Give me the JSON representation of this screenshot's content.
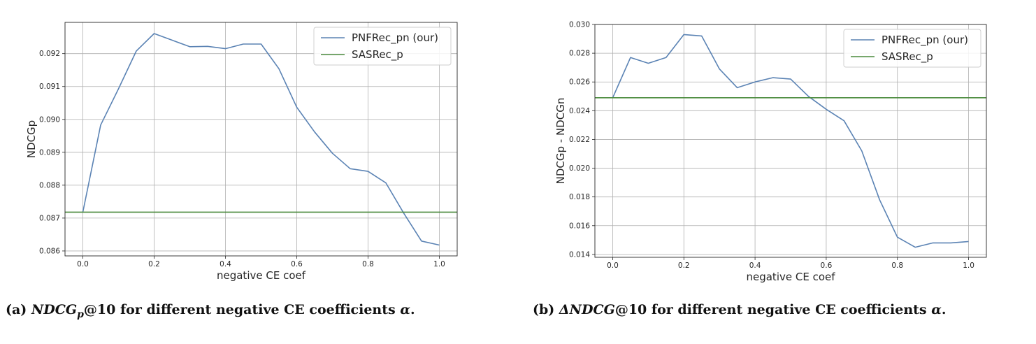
{
  "chart_data": [
    {
      "type": "line",
      "xlabel": "negative CE coef",
      "ylabel": "NDCGp",
      "xlim": [
        -0.05,
        1.05
      ],
      "ylim": [
        0.08585,
        0.09295
      ],
      "xticks": [
        "0.0",
        "0.2",
        "0.4",
        "0.6",
        "0.8",
        "1.0"
      ],
      "yticks": [
        "0.086",
        "0.087",
        "0.088",
        "0.089",
        "0.090",
        "0.091",
        "0.092"
      ],
      "grid": true,
      "legend_position": "top-right",
      "series": [
        {
          "name": "PNFRec_pn (our)",
          "color": "#5b83b4",
          "x": [
            0.0,
            0.05,
            0.1,
            0.15,
            0.2,
            0.25,
            0.3,
            0.35,
            0.4,
            0.45,
            0.5,
            0.55,
            0.6,
            0.65,
            0.7,
            0.75,
            0.8,
            0.85,
            0.9,
            0.95,
            1.0
          ],
          "y": [
            0.08718,
            0.08983,
            0.09093,
            0.09208,
            0.09261,
            0.09241,
            0.09221,
            0.09222,
            0.09215,
            0.09229,
            0.09229,
            0.09154,
            0.09037,
            0.08962,
            0.08897,
            0.0885,
            0.08842,
            0.08807,
            0.08715,
            0.0863,
            0.08618
          ]
        },
        {
          "name": "SASRec_p",
          "color": "#4a8a3c",
          "x": [
            -0.05,
            1.05
          ],
          "y": [
            0.08718,
            0.08718
          ]
        }
      ]
    },
    {
      "type": "line",
      "xlabel": "negative CE coef",
      "ylabel": "NDCGp - NDCGn",
      "xlim": [
        -0.05,
        1.05
      ],
      "ylim": [
        0.0138,
        0.03
      ],
      "xticks": [
        "0.0",
        "0.2",
        "0.4",
        "0.6",
        "0.8",
        "1.0"
      ],
      "yticks": [
        "0.014",
        "0.016",
        "0.018",
        "0.020",
        "0.022",
        "0.024",
        "0.026",
        "0.028",
        "0.030"
      ],
      "grid": true,
      "legend_position": "top-right",
      "series": [
        {
          "name": "PNFRec_pn (our)",
          "color": "#5b83b4",
          "x": [
            0.0,
            0.05,
            0.1,
            0.15,
            0.2,
            0.25,
            0.3,
            0.35,
            0.4,
            0.45,
            0.5,
            0.55,
            0.6,
            0.65,
            0.7,
            0.75,
            0.8,
            0.85,
            0.9,
            0.95,
            1.0
          ],
          "y": [
            0.0249,
            0.0277,
            0.0273,
            0.0277,
            0.0293,
            0.0292,
            0.0269,
            0.0256,
            0.026,
            0.0263,
            0.0262,
            0.025,
            0.0241,
            0.0233,
            0.0212,
            0.0178,
            0.0152,
            0.0145,
            0.0148,
            0.0148,
            0.0149
          ]
        },
        {
          "name": "SASRec_p",
          "color": "#4a8a3c",
          "x": [
            -0.05,
            1.05
          ],
          "y": [
            0.0249,
            0.0249
          ]
        }
      ]
    }
  ],
  "captions": [
    {
      "label": "(a)",
      "math_main": "NDCG",
      "math_sub": "p",
      "math_suffix": "@10",
      "text": " for different negative CE coefficients ",
      "alpha": "α",
      "end": "."
    },
    {
      "label": "(b)",
      "math_main": "ΔNDCG",
      "math_suffix": "@10",
      "text": " for different negative CE coefficients ",
      "alpha": "α",
      "end": "."
    }
  ]
}
